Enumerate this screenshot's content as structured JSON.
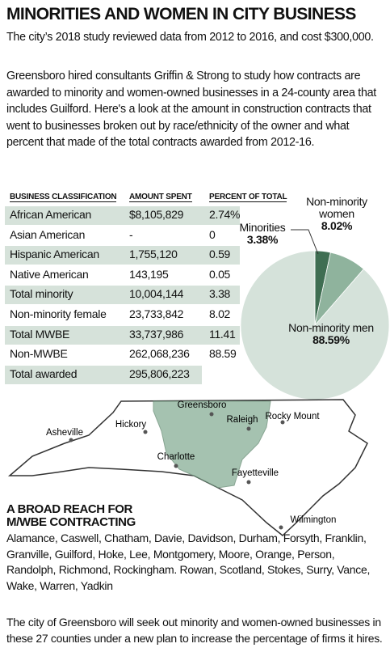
{
  "header": {
    "title": "MINORITIES AND WOMEN IN CITY BUSINESS",
    "paragraphs": [
      "The city’s 2018 study reviewed data from 2012 to 2016, and cost $300,000.",
      "Greensboro hired consultants Griffin & Strong to study how contracts are awarded to minority and women-owned businesses in a 24-county area that includes Guilford. Here's a look at the amount in construction contracts that went to businesses broken out by race/ethnicity of the owner and what percent that made of the total contracts awarded from 2012-16."
    ]
  },
  "table": {
    "columns": [
      "Business classification",
      "Amount spent",
      "Percent of total"
    ],
    "rows": [
      [
        "African American",
        "$8,105,829",
        "2.74%"
      ],
      [
        "Asian American",
        "-",
        "0"
      ],
      [
        "Hispanic American",
        "1,755,120",
        "0.59"
      ],
      [
        "Native American",
        "143,195",
        "0.05"
      ],
      [
        "Total minority",
        "10,004,144",
        "3.38"
      ],
      [
        "Non-minority female",
        "23,733,842",
        "8.02"
      ],
      [
        "Total MWBE",
        "33,737,986",
        "11.41"
      ],
      [
        "Non-MWBE",
        "262,068,236",
        "88.59"
      ],
      [
        "Total awarded",
        "295,806,223"
      ]
    ]
  },
  "chart_data": {
    "type": "pie",
    "categories": [
      "Minorities",
      "Non-minority women",
      "Non-minority men"
    ],
    "values": [
      3.38,
      8.02,
      88.59
    ],
    "value_labels": [
      "3.38%",
      "8.02%",
      "88.59%"
    ],
    "colors": [
      "#3f6e52",
      "#8fb39d",
      "#d5e2da"
    ]
  },
  "map": {
    "cities": [
      "Greensboro",
      "Raleigh",
      "Rocky Mount",
      "Asheville",
      "Hickory",
      "Charlotte",
      "Fayetteville",
      "Wilmington"
    ]
  },
  "counties": {
    "heading": "A BROAD REACH FOR M/WBE CONTRACTING",
    "text": "Alamance, Caswell, Chatham, Davie, Davidson, Durham, Forsyth, Franklin, Granville, Guilford, Hoke, Lee, Montgomery, Moore, Orange, Person, Randolph, Richmond, Rockingham. Rowan, Scotland, Stokes, Surry, Vance, Wake, Warren, Yadkin"
  },
  "footer": {
    "text": "The city of Greensboro will seek out minority and women-owned businesses in these 27 counties under a new plan to increase the percentage of firms it hires."
  }
}
